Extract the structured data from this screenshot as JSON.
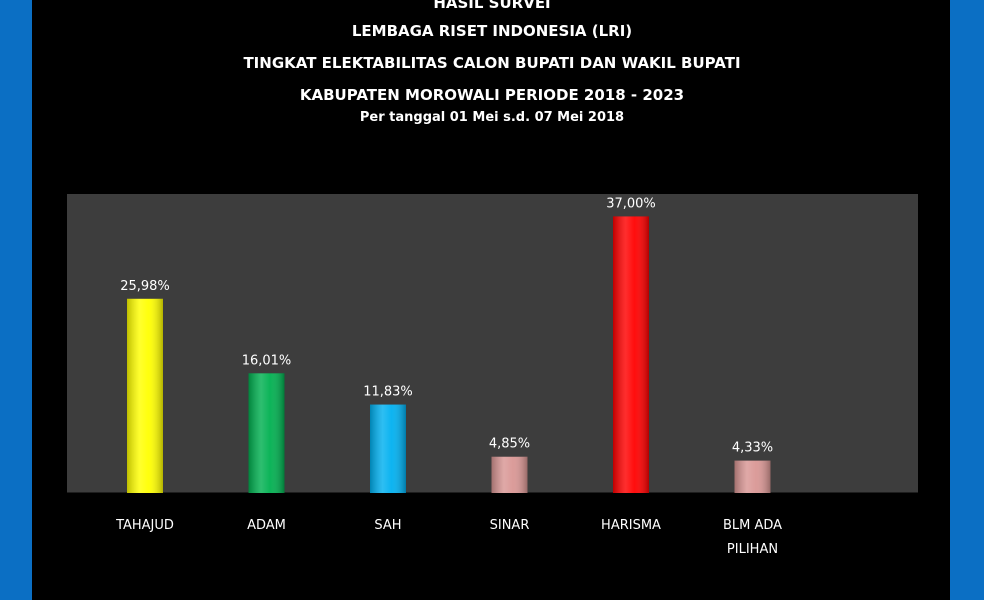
{
  "titles": {
    "line1": "HASIL SURVEI",
    "line2": "LEMBAGA RISET INDONESIA (LRI)",
    "line3": "TINGKAT ELEKTABILITAS CALON BUPATI DAN WAKIL BUPATI",
    "line4": "KABUPATEN MOROWALI PERIODE 2018 - 2023",
    "line5": "Per tanggal 01 Mei  s.d.  07 Mei 2018"
  },
  "colors": {
    "background": "#0b6fc4",
    "frame": "#000000",
    "plot_area": "#3d3d3d"
  },
  "chart_data": {
    "type": "bar",
    "categories": [
      "TAHAJUD",
      "ADAM",
      "SAH",
      "SINAR",
      "HARISMA",
      "BLM ADA PILIHAN"
    ],
    "category_lines": [
      [
        "TAHAJUD"
      ],
      [
        "ADAM"
      ],
      [
        "SAH"
      ],
      [
        "SINAR"
      ],
      [
        "HARISMA"
      ],
      [
        "BLM ADA",
        "PILIHAN"
      ]
    ],
    "values": [
      25.98,
      16.01,
      11.83,
      4.85,
      37.0,
      4.33
    ],
    "value_labels": [
      "25,98%",
      "16,01%",
      "11,83%",
      "4,85%",
      "37,00%",
      "4,33%"
    ],
    "bar_colors": [
      "#ffff00",
      "#00b050",
      "#00b0f0",
      "#d99694",
      "#ff0000",
      "#d99694"
    ],
    "title": "",
    "xlabel": "",
    "ylabel": "",
    "ylim": [
      0,
      40
    ],
    "grid": false,
    "legend": "none"
  }
}
